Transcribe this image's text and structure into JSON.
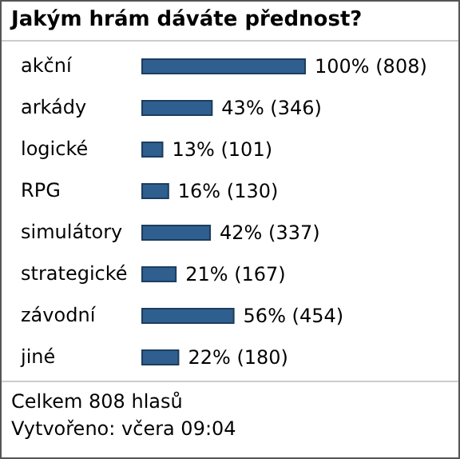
{
  "chart_data": {
    "type": "bar",
    "orientation": "horizontal",
    "title": "Jakým hrám dáváte přednost?",
    "categories": [
      "akční",
      "arkády",
      "logické",
      "RPG",
      "simulátory",
      "strategické",
      "závodní",
      "jiné"
    ],
    "values": [
      808,
      346,
      101,
      130,
      337,
      167,
      454,
      180
    ],
    "value_labels": [
      "100% (808)",
      "43% (346)",
      "13% (101)",
      "16% (130)",
      "42% (337)",
      "21% (167)",
      "56% (454)",
      "22% (180)"
    ],
    "color": "#2f5f8f",
    "annotations": [
      "Celkem 808 hlasů",
      "Vytvořeno: včera 09:04"
    ]
  }
}
